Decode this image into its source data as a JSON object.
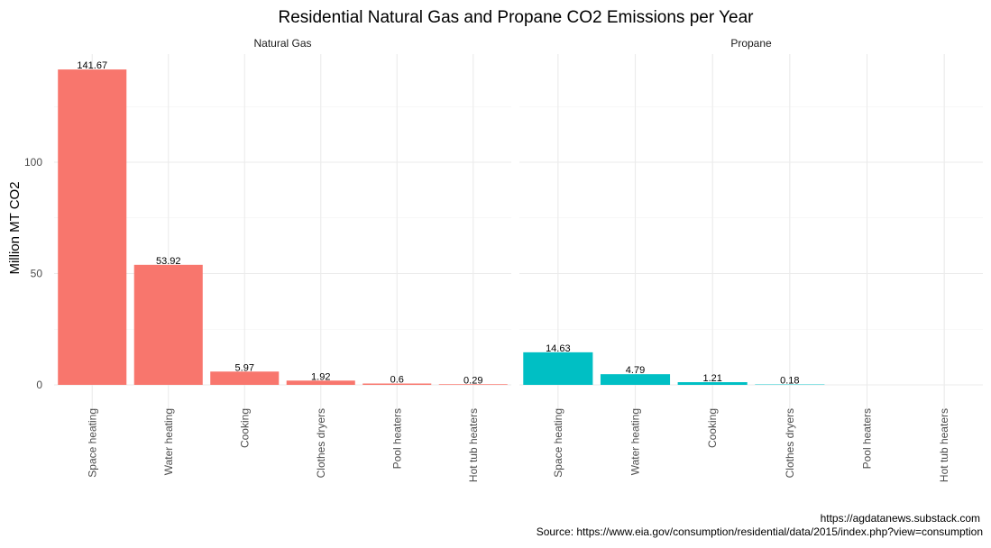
{
  "chart_data": {
    "type": "bar",
    "title": "Residential Natural Gas and Propane CO2 Emissions per Year",
    "xlabel": "",
    "ylabel": "Million MT CO2",
    "ylim": [
      0,
      148
    ],
    "yticks": [
      0,
      50,
      100
    ],
    "grid": true,
    "categories": [
      "Space heating",
      "Water heating",
      "Cooking",
      "Clothes dryers",
      "Pool heaters",
      "Hot tub heaters"
    ],
    "facets": [
      {
        "name": "Natural Gas",
        "color": "#F8766D",
        "values": [
          141.67,
          53.92,
          5.97,
          1.92,
          0.6,
          0.29
        ]
      },
      {
        "name": "Propane",
        "color": "#00BFC4",
        "values": [
          14.63,
          4.79,
          1.21,
          0.18,
          null,
          null
        ]
      }
    ],
    "captions": [
      "https://agdatanews.substack.com",
      "Source: https://www.eia.gov/consumption/residential/data/2015/index.php?view=consumption"
    ]
  }
}
